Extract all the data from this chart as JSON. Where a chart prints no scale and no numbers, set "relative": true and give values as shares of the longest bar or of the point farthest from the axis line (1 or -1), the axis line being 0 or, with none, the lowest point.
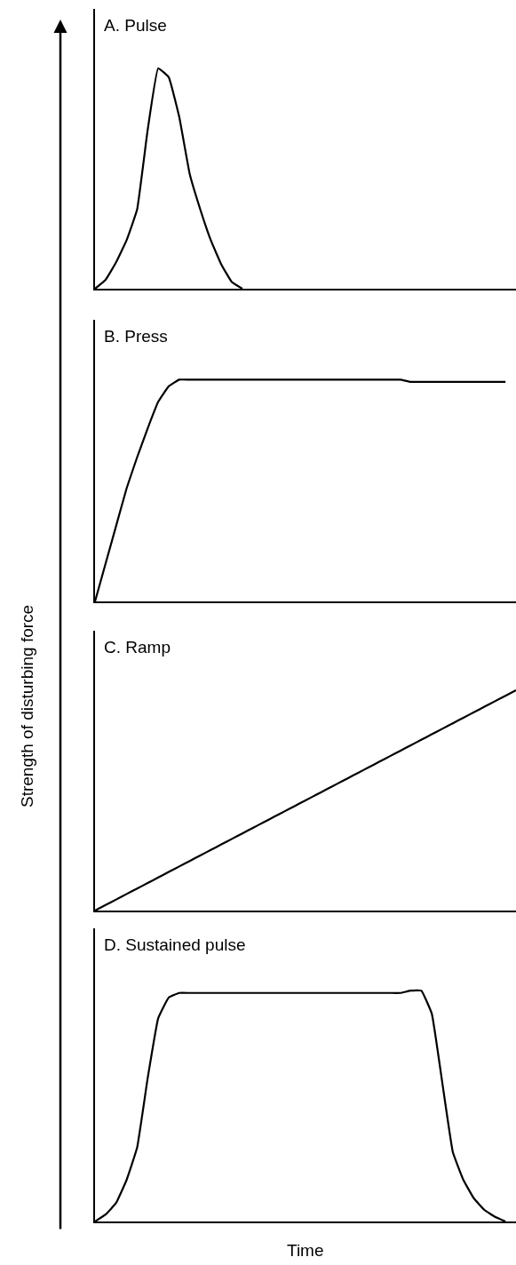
{
  "chart_data": [
    {
      "type": "line",
      "relative": true,
      "title": "A. Pulse",
      "color": "#000000",
      "categories": [
        null,
        null,
        null,
        null,
        null,
        null,
        null,
        null,
        null,
        null,
        null,
        null,
        null,
        null,
        null,
        null,
        null,
        null,
        null,
        null,
        null,
        null,
        null,
        null,
        null,
        null,
        null,
        null,
        null,
        null,
        null,
        null,
        null,
        null,
        null,
        null,
        null,
        null,
        null,
        null,
        null
      ],
      "values": [
        0,
        0.04,
        0.12,
        0.22,
        0.36,
        0.72,
        1,
        0.96,
        0.78,
        0.52,
        0.36,
        0.22,
        0.11,
        0.03,
        0,
        null,
        null,
        null,
        null,
        null,
        null,
        null,
        null,
        null,
        null,
        null,
        null,
        null,
        null,
        null,
        null,
        null,
        null,
        null,
        null,
        null,
        null,
        null,
        null,
        null,
        null
      ]
    },
    {
      "type": "line",
      "relative": true,
      "title": "B. Press",
      "color": "#000000",
      "categories": [
        null,
        null,
        null,
        null,
        null,
        null,
        null,
        null,
        null,
        null,
        null,
        null,
        null,
        null,
        null,
        null,
        null,
        null,
        null,
        null,
        null,
        null,
        null,
        null,
        null,
        null,
        null,
        null,
        null,
        null,
        null,
        null,
        null,
        null,
        null,
        null,
        null,
        null,
        null,
        null,
        null
      ],
      "values": [
        0,
        0.17,
        0.34,
        0.51,
        0.65,
        0.78,
        0.9,
        0.97,
        1,
        1,
        1,
        1,
        1,
        1,
        1,
        1,
        1,
        1,
        1,
        1,
        1,
        1,
        1,
        1,
        1,
        1,
        1,
        1,
        1,
        1,
        0.99,
        0.99,
        0.99,
        0.99,
        0.99,
        0.99,
        0.99,
        0.99,
        0.99,
        0.99,
        null
      ]
    },
    {
      "type": "line",
      "relative": true,
      "title": "C. Ramp",
      "ylabel": "Strength of disturbing force",
      "color": "#000000",
      "categories": [
        null,
        null,
        null,
        null,
        null,
        null,
        null,
        null,
        null,
        null,
        null,
        null,
        null,
        null,
        null,
        null,
        null,
        null,
        null,
        null,
        null,
        null,
        null,
        null,
        null,
        null,
        null,
        null,
        null,
        null,
        null,
        null,
        null,
        null,
        null,
        null,
        null,
        null,
        null,
        null,
        null
      ],
      "values": [
        0,
        0.025,
        0.05,
        0.075,
        0.1,
        0.125,
        0.15,
        0.175,
        0.2,
        0.225,
        0.25,
        0.275,
        0.3,
        0.325,
        0.35,
        0.375,
        0.4,
        0.425,
        0.45,
        0.475,
        0.5,
        0.525,
        0.55,
        0.575,
        0.6,
        0.625,
        0.65,
        0.675,
        0.7,
        0.725,
        0.75,
        0.775,
        0.8,
        0.825,
        0.85,
        0.875,
        0.9,
        0.925,
        0.95,
        0.975,
        1
      ]
    },
    {
      "type": "line",
      "relative": true,
      "title": "D. Sustained pulse",
      "xlabel": "Time",
      "color": "#000000",
      "categories": [
        null,
        null,
        null,
        null,
        null,
        null,
        null,
        null,
        null,
        null,
        null,
        null,
        null,
        null,
        null,
        null,
        null,
        null,
        null,
        null,
        null,
        null,
        null,
        null,
        null,
        null,
        null,
        null,
        null,
        null,
        null,
        null,
        null,
        null,
        null,
        null,
        null,
        null,
        null,
        null,
        null
      ],
      "values": [
        0,
        0.03,
        0.08,
        0.18,
        0.32,
        0.62,
        0.88,
        0.97,
        0.99,
        0.99,
        0.99,
        0.99,
        0.99,
        0.99,
        0.99,
        0.99,
        0.99,
        0.99,
        0.99,
        0.99,
        0.99,
        0.99,
        0.99,
        0.99,
        0.99,
        0.99,
        0.99,
        0.99,
        0.99,
        0.99,
        1,
        1,
        0.9,
        0.6,
        0.3,
        0.18,
        0.1,
        0.05,
        0.02,
        0,
        null
      ]
    }
  ]
}
